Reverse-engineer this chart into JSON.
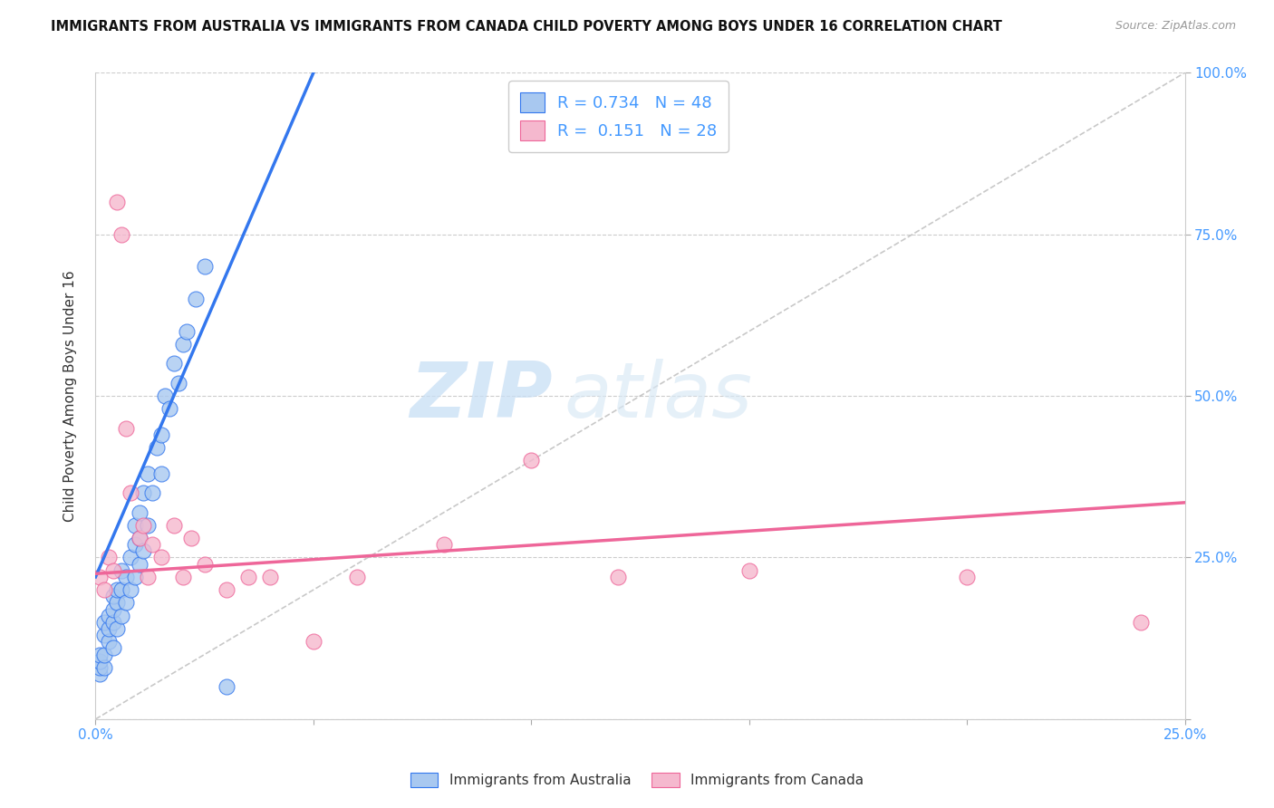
{
  "title": "IMMIGRANTS FROM AUSTRALIA VS IMMIGRANTS FROM CANADA CHILD POVERTY AMONG BOYS UNDER 16 CORRELATION CHART",
  "source": "Source: ZipAtlas.com",
  "ylabel": "Child Poverty Among Boys Under 16",
  "x_min": 0.0,
  "x_max": 0.25,
  "y_min": 0.0,
  "y_max": 1.0,
  "australia_color": "#a8c8f0",
  "canada_color": "#f5b8ce",
  "trend_australia_color": "#3377ee",
  "trend_canada_color": "#ee6699",
  "diagonal_color": "#bbbbbb",
  "watermark_zip": "ZIP",
  "watermark_atlas": "atlas",
  "legend_R_australia": "0.734",
  "legend_N_australia": "48",
  "legend_R_canada": "0.151",
  "legend_N_canada": "28",
  "aus_trend_x0": 0.0,
  "aus_trend_y0": 0.22,
  "aus_trend_x1": 0.05,
  "aus_trend_y1": 1.0,
  "can_trend_x0": 0.0,
  "can_trend_y0": 0.225,
  "can_trend_x1": 0.25,
  "can_trend_y1": 0.335,
  "australia_x": [
    0.001,
    0.001,
    0.001,
    0.001,
    0.002,
    0.002,
    0.002,
    0.002,
    0.003,
    0.003,
    0.003,
    0.004,
    0.004,
    0.004,
    0.004,
    0.005,
    0.005,
    0.005,
    0.006,
    0.006,
    0.006,
    0.007,
    0.007,
    0.008,
    0.008,
    0.009,
    0.009,
    0.009,
    0.01,
    0.01,
    0.01,
    0.011,
    0.011,
    0.012,
    0.012,
    0.013,
    0.014,
    0.015,
    0.015,
    0.016,
    0.017,
    0.018,
    0.019,
    0.02,
    0.021,
    0.023,
    0.025,
    0.03
  ],
  "australia_y": [
    0.07,
    0.08,
    0.09,
    0.1,
    0.08,
    0.1,
    0.13,
    0.15,
    0.12,
    0.14,
    0.16,
    0.11,
    0.15,
    0.17,
    0.19,
    0.14,
    0.18,
    0.2,
    0.16,
    0.2,
    0.23,
    0.18,
    0.22,
    0.2,
    0.25,
    0.22,
    0.27,
    0.3,
    0.24,
    0.28,
    0.32,
    0.26,
    0.35,
    0.3,
    0.38,
    0.35,
    0.42,
    0.38,
    0.44,
    0.5,
    0.48,
    0.55,
    0.52,
    0.58,
    0.6,
    0.65,
    0.7,
    0.05
  ],
  "canada_x": [
    0.001,
    0.002,
    0.003,
    0.004,
    0.005,
    0.006,
    0.007,
    0.008,
    0.01,
    0.011,
    0.012,
    0.013,
    0.015,
    0.018,
    0.02,
    0.022,
    0.025,
    0.03,
    0.035,
    0.04,
    0.05,
    0.06,
    0.08,
    0.1,
    0.12,
    0.15,
    0.2,
    0.24
  ],
  "canada_y": [
    0.22,
    0.2,
    0.25,
    0.23,
    0.8,
    0.75,
    0.45,
    0.35,
    0.28,
    0.3,
    0.22,
    0.27,
    0.25,
    0.3,
    0.22,
    0.28,
    0.24,
    0.2,
    0.22,
    0.22,
    0.12,
    0.22,
    0.27,
    0.4,
    0.22,
    0.23,
    0.22,
    0.15
  ]
}
